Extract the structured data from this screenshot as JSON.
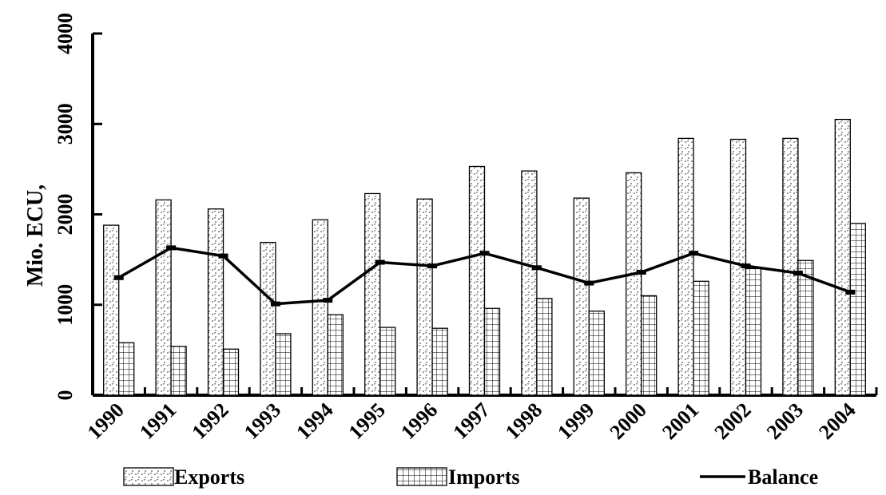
{
  "chart_data": {
    "type": "bar",
    "categories": [
      "1990",
      "1991",
      "1992",
      "1993",
      "1994",
      "1995",
      "1996",
      "1997",
      "1998",
      "1999",
      "2000",
      "2001",
      "2002",
      "2003",
      "2004"
    ],
    "series": [
      {
        "name": "Exports",
        "type": "bar",
        "pattern": "dotted-zigzag",
        "values": [
          1880,
          2160,
          2060,
          1690,
          1940,
          2230,
          2170,
          2530,
          2480,
          2180,
          2460,
          2840,
          2830,
          2840,
          3050
        ]
      },
      {
        "name": "Imports",
        "type": "bar",
        "pattern": "grid",
        "values": [
          580,
          540,
          510,
          680,
          890,
          750,
          740,
          960,
          1070,
          930,
          1100,
          1260,
          1400,
          1490,
          1900
        ]
      },
      {
        "name": "Balance",
        "type": "line",
        "values": [
          1300,
          1630,
          1540,
          1010,
          1050,
          1470,
          1430,
          1570,
          1410,
          1240,
          1360,
          1570,
          1430,
          1350,
          1140
        ]
      }
    ],
    "title": "",
    "xlabel": "",
    "ylabel": "Mio. ECU,",
    "ylim": [
      0,
      4000
    ],
    "yticks": [
      0,
      1000,
      2000,
      3000,
      4000
    ],
    "grid": false,
    "legend": "bottom"
  }
}
